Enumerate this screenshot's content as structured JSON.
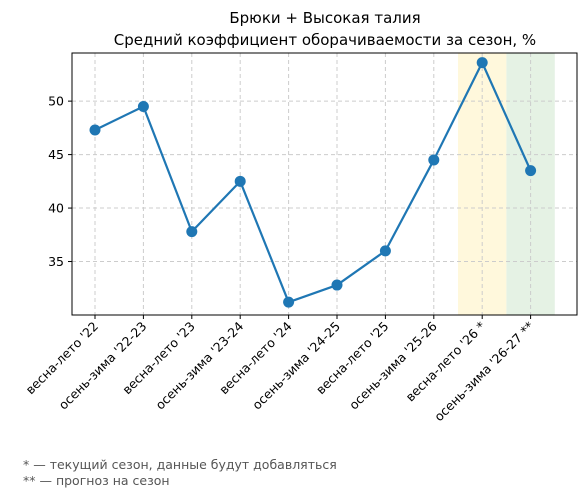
{
  "chart_data": {
    "type": "line",
    "title": "Брюки + Высокая талия",
    "subtitle": "Средний коэффициент оборачиваемости за сезон, %",
    "xlabel": "",
    "ylabel": "",
    "categories": [
      "весна-лето '22",
      "осень-зима '22-23",
      "весна-лето '23",
      "осень-зима '23-24",
      "весна-лето '24",
      "осень-зима '24-25",
      "весна-лето '25",
      "осень-зима '25-26",
      "весна-лето '26 *",
      "осень-зима '26-27 **"
    ],
    "series": [
      {
        "values": [
          47.3,
          49.5,
          37.8,
          42.5,
          31.2,
          32.8,
          36.0,
          44.5,
          53.6,
          43.5
        ]
      }
    ],
    "ylim": [
      30,
      54.5
    ],
    "yticks": [
      35,
      40,
      45,
      50
    ],
    "grid": true,
    "highlights": [
      {
        "category_index": 8,
        "color": "#fff8dc",
        "meaning": "current season"
      },
      {
        "category_index": 9,
        "color": "#e5f2e4",
        "meaning": "forecast"
      }
    ],
    "line_color": "#1f77b4"
  },
  "footnotes": [
    "* — текущий сезон, данные будут добавляться",
    "** — прогноз на сезон"
  ]
}
